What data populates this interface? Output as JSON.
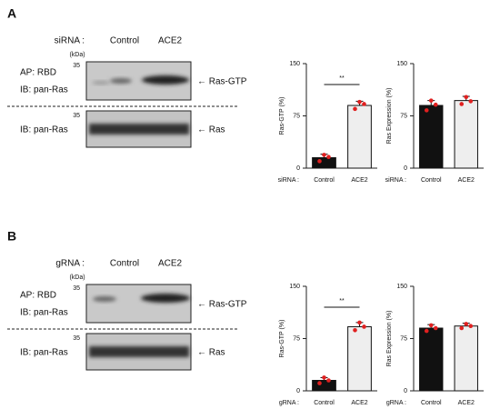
{
  "panels": [
    {
      "letter": "A",
      "header_label": "siRNA :",
      "lanes": [
        "Control",
        "ACE2"
      ],
      "unit": "(kDa)",
      "markers": [
        "35",
        "35"
      ],
      "upper_labels": [
        "AP: RBD",
        "IB: pan-Ras"
      ],
      "upper_arrow": "← Ras-GTP",
      "lower_label": "IB: pan-Ras",
      "lower_arrow": "← Ras"
    },
    {
      "letter": "B",
      "header_label": "gRNA :",
      "lanes": [
        "Control",
        "ACE2"
      ],
      "unit": "(kDa)",
      "markers": [
        "35",
        "35"
      ],
      "upper_labels": [
        "AP: RBD",
        "IB: pan-Ras"
      ],
      "upper_arrow": "← Ras-GTP",
      "lower_label": "IB: pan-Ras",
      "lower_arrow": "← Ras"
    }
  ],
  "chart_data": [
    {
      "type": "bar",
      "ylabel": "Ras-GTP (%)",
      "xlabel": "siRNA :",
      "categories": [
        "Control",
        "ACE2"
      ],
      "values": [
        15,
        90
      ],
      "errors": [
        5,
        6
      ],
      "points": [
        [
          10,
          19,
          16
        ],
        [
          85,
          95,
          92
        ]
      ],
      "colors": [
        "#111111",
        "#eeeeee"
      ],
      "point_color": "#e02020",
      "ylim": [
        0,
        150
      ],
      "yticks": [
        0,
        75,
        150
      ],
      "annotation": "**"
    },
    {
      "type": "bar",
      "ylabel": "Ras Expression (%)",
      "xlabel": "siRNA :",
      "categories": [
        "Control",
        "ACE2"
      ],
      "values": [
        90,
        97
      ],
      "errors": [
        7,
        6
      ],
      "points": [
        [
          83,
          97,
          91
        ],
        [
          92,
          102,
          96
        ]
      ],
      "colors": [
        "#111111",
        "#eeeeee"
      ],
      "point_color": "#e02020",
      "ylim": [
        0,
        150
      ],
      "yticks": [
        0,
        75,
        150
      ]
    },
    {
      "type": "bar",
      "ylabel": "Ras-GTP (%)",
      "xlabel": "gRNA :",
      "categories": [
        "Control",
        "ACE2"
      ],
      "values": [
        15,
        92
      ],
      "errors": [
        4,
        6
      ],
      "points": [
        [
          11,
          19,
          15
        ],
        [
          87,
          98,
          92
        ]
      ],
      "colors": [
        "#111111",
        "#eeeeee"
      ],
      "point_color": "#e02020",
      "ylim": [
        0,
        150
      ],
      "yticks": [
        0,
        75,
        150
      ],
      "annotation": "**"
    },
    {
      "type": "bar",
      "ylabel": "Ras Expression (%)",
      "xlabel": "gRNA :",
      "categories": [
        "Control",
        "ACE2"
      ],
      "values": [
        90,
        93
      ],
      "errors": [
        5,
        4
      ],
      "points": [
        [
          86,
          94,
          90
        ],
        [
          90,
          96,
          93
        ]
      ],
      "colors": [
        "#111111",
        "#eeeeee"
      ],
      "point_color": "#e02020",
      "ylim": [
        0,
        150
      ],
      "yticks": [
        0,
        75,
        150
      ]
    }
  ]
}
